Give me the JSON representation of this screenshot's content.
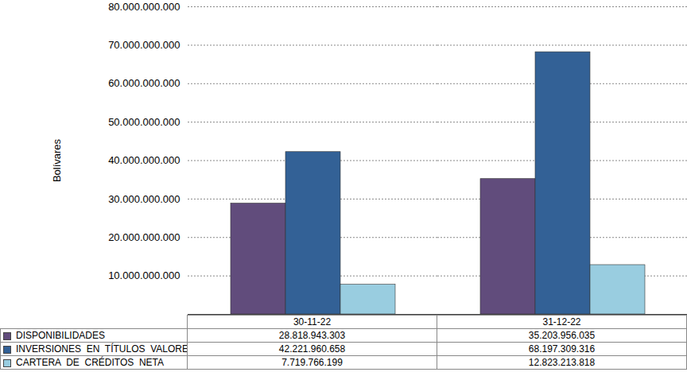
{
  "chart_data": {
    "type": "bar",
    "y_label": "Bolívares",
    "categories": [
      "30-11-22",
      "31-12-22"
    ],
    "series": [
      {
        "name": "DISPONIBILIDADES",
        "color": "#614c7c",
        "values": [
          28818943303,
          35203956035
        ],
        "value_labels": [
          "28.818.943.303",
          "35.203.956.035"
        ]
      },
      {
        "name": "INVERSIONES  EN  TÍTULOS  VALORES",
        "color": "#336196",
        "values": [
          42221960658,
          68197309316
        ],
        "value_labels": [
          "42.221.960.658",
          "68.197.309.316"
        ]
      },
      {
        "name": "CARTERA  DE  CRÉDITOS  NETA",
        "color": "#99cde0",
        "values": [
          7719766199,
          12823213818
        ],
        "value_labels": [
          "7.719.766.199",
          "12.823.213.818"
        ]
      }
    ],
    "ylim": [
      0,
      80000000000
    ],
    "yticks": [
      {
        "value": 0,
        "label": "-"
      },
      {
        "value": 10000000000,
        "label": "10.000.000.000"
      },
      {
        "value": 20000000000,
        "label": "20.000.000.000"
      },
      {
        "value": 30000000000,
        "label": "30.000.000.000"
      },
      {
        "value": 40000000000,
        "label": "40.000.000.000"
      },
      {
        "value": 50000000000,
        "label": "50.000.000.000"
      },
      {
        "value": 60000000000,
        "label": "60.000.000.000"
      },
      {
        "value": 70000000000,
        "label": "70.000.000.000"
      },
      {
        "value": 80000000000,
        "label": "80.000.000.000"
      }
    ],
    "grid": true
  }
}
